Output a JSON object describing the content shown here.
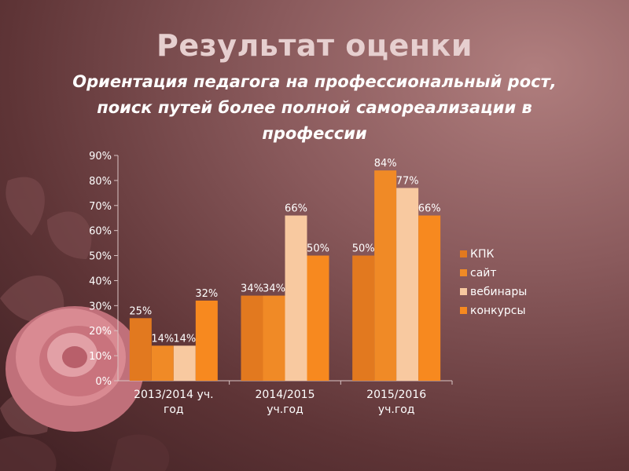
{
  "slide": {
    "title": "Результат оценки",
    "subtitle_line1": "Ориентация педагога на профессиональный рост,",
    "subtitle_line2": "поиск путей более полной самореализации в",
    "subtitle_line3": "профессии"
  },
  "chart_data": {
    "type": "bar",
    "categories": [
      [
        "2013/2014 уч.",
        "год"
      ],
      [
        "2014/2015",
        "уч.год"
      ],
      [
        "2015/2016",
        "уч.год"
      ]
    ],
    "series": [
      {
        "name": "КПК",
        "values": [
          25,
          34,
          50
        ],
        "labels": [
          "25%",
          "34%",
          "50%"
        ],
        "color": "#e2791f"
      },
      {
        "name": "сайт",
        "values": [
          14,
          34,
          84
        ],
        "labels": [
          "14%",
          "34%",
          "84%"
        ],
        "color": "#f08a26"
      },
      {
        "name": "вебинары",
        "values": [
          14,
          66,
          77
        ],
        "labels": [
          "14%",
          "66%",
          "77%"
        ],
        "color": "#f8c9a0"
      },
      {
        "name": "конкурсы",
        "values": [
          32,
          50,
          66
        ],
        "labels": [
          "32%",
          "50%",
          "66%"
        ],
        "color": "#f7891f"
      }
    ],
    "y_ticks": [
      "0%",
      "10%",
      "20%",
      "30%",
      "40%",
      "50%",
      "60%",
      "70%",
      "80%",
      "90%"
    ],
    "ylim": [
      0,
      90
    ],
    "grid": false,
    "legend_position": "right"
  },
  "colors": {
    "background": "#6e4244",
    "title": "#e6cfcf",
    "text": "#ffffff"
  }
}
